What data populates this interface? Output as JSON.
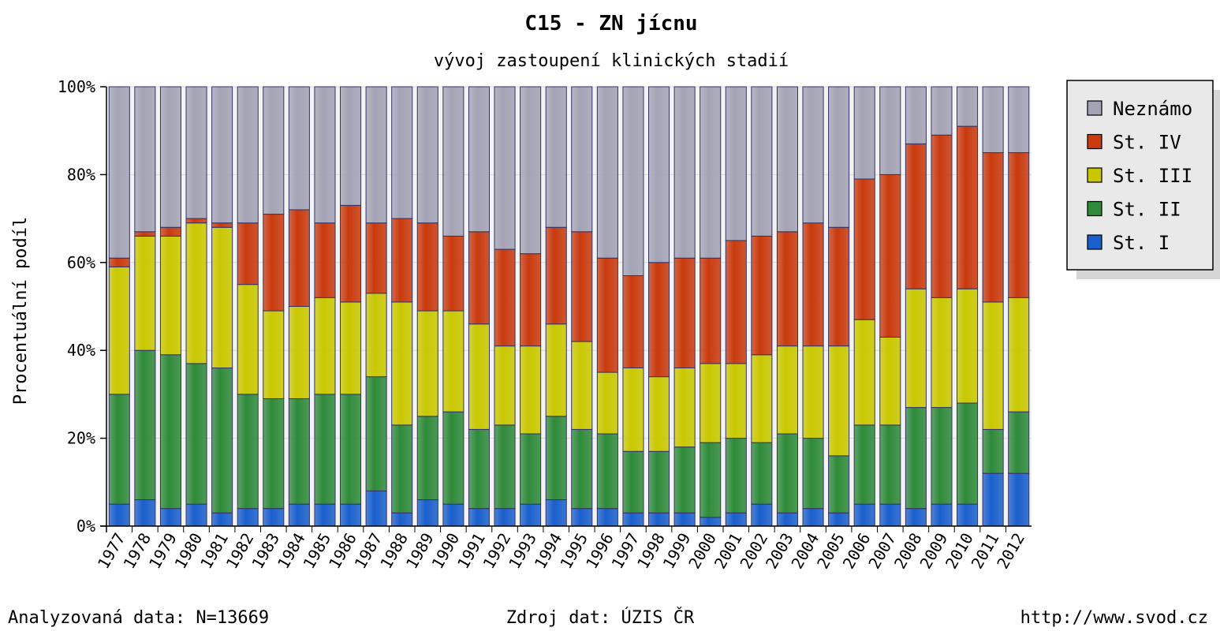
{
  "chart_data": {
    "type": "bar",
    "stacked": true,
    "percent": true,
    "title": "C15 - ZN jícnu",
    "subtitle": "vývoj zastoupení klinických stadií",
    "ylabel": "Procentuální podíl",
    "xlabel": "",
    "ylim": [
      0,
      100
    ],
    "yticks": [
      "0%",
      "20%",
      "40%",
      "60%",
      "80%",
      "100%"
    ],
    "grid": true,
    "legend_position": "right",
    "categories": [
      "1977",
      "1978",
      "1979",
      "1980",
      "1981",
      "1982",
      "1983",
      "1984",
      "1985",
      "1986",
      "1987",
      "1988",
      "1989",
      "1990",
      "1991",
      "1992",
      "1993",
      "1994",
      "1995",
      "1996",
      "1997",
      "1998",
      "1999",
      "2000",
      "2001",
      "2002",
      "2003",
      "2004",
      "2005",
      "2006",
      "2007",
      "2008",
      "2009",
      "2010",
      "2011",
      "2012"
    ],
    "series": [
      {
        "name": "St. I",
        "color": "#1a5fcc",
        "values": [
          5,
          6,
          4,
          5,
          3,
          4,
          4,
          5,
          5,
          5,
          8,
          3,
          6,
          5,
          4,
          4,
          5,
          6,
          4,
          4,
          3,
          3,
          3,
          2,
          3,
          5,
          3,
          4,
          3,
          5,
          5,
          4,
          5,
          5,
          12,
          12
        ]
      },
      {
        "name": "St. II",
        "color": "#2f8a3a",
        "values": [
          25,
          34,
          35,
          32,
          33,
          26,
          25,
          24,
          25,
          25,
          26,
          20,
          19,
          21,
          18,
          19,
          16,
          19,
          18,
          17,
          14,
          14,
          15,
          17,
          17,
          14,
          18,
          16,
          13,
          18,
          18,
          23,
          22,
          23,
          10,
          14
        ]
      },
      {
        "name": "St. III",
        "color": "#c9c800",
        "values": [
          29,
          26,
          27,
          32,
          32,
          25,
          20,
          21,
          22,
          21,
          19,
          28,
          24,
          23,
          24,
          18,
          20,
          21,
          20,
          14,
          19,
          17,
          18,
          18,
          17,
          20,
          20,
          21,
          25,
          24,
          20,
          27,
          25,
          26,
          29,
          26
        ]
      },
      {
        "name": "St. IV",
        "color": "#c93a0e",
        "values": [
          2,
          1,
          2,
          1,
          1,
          14,
          22,
          22,
          17,
          22,
          16,
          19,
          20,
          17,
          21,
          22,
          21,
          22,
          25,
          26,
          21,
          26,
          25,
          24,
          28,
          27,
          26,
          28,
          27,
          32,
          37,
          33,
          37,
          37,
          34,
          33
        ]
      },
      {
        "name": "Neznámo",
        "color": "#a3a3b5",
        "values": [
          39,
          33,
          32,
          30,
          31,
          31,
          29,
          28,
          31,
          27,
          31,
          30,
          31,
          34,
          33,
          37,
          38,
          32,
          33,
          39,
          43,
          40,
          39,
          39,
          35,
          34,
          33,
          31,
          32,
          21,
          20,
          13,
          11,
          9,
          15,
          15
        ]
      }
    ]
  },
  "legend": {
    "items": [
      {
        "label": "Neznámo",
        "color": "#a3a3b5"
      },
      {
        "label": "St. IV",
        "color": "#c93a0e"
      },
      {
        "label": "St. III",
        "color": "#c9c800"
      },
      {
        "label": "St. II",
        "color": "#2f8a3a"
      },
      {
        "label": "St. I",
        "color": "#1a5fcc"
      }
    ]
  },
  "footer": {
    "left": "Analyzovaná data: N=13669",
    "center": "Zdroj dat: ÚZIS ČR",
    "right": "http://www.svod.cz"
  }
}
